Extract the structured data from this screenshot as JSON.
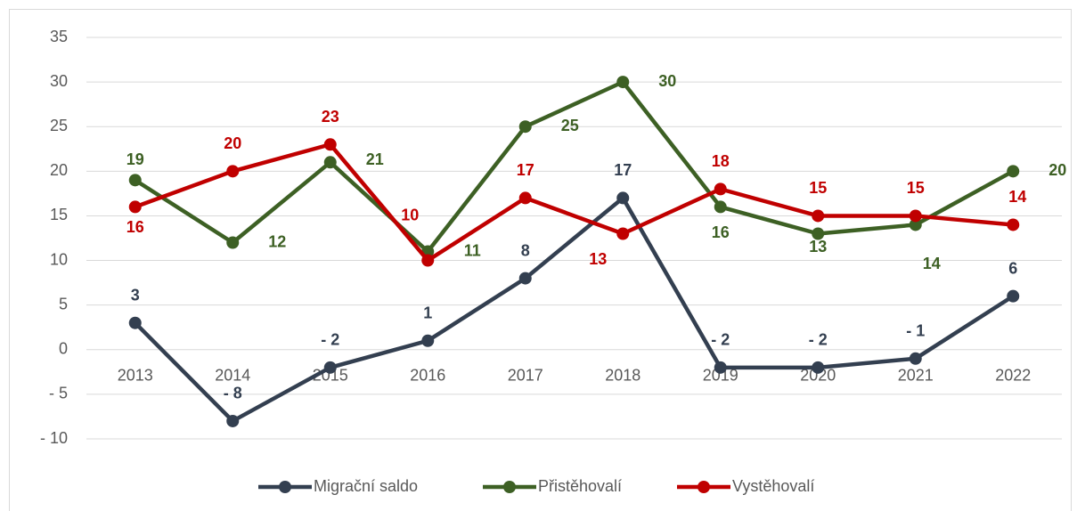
{
  "chart_data": {
    "type": "line",
    "categories": [
      "2013",
      "2014",
      "2015",
      "2016",
      "2017",
      "2018",
      "2019",
      "2020",
      "2021",
      "2022"
    ],
    "series": [
      {
        "name": "Migrační saldo",
        "color": "#333f50",
        "values": [
          3,
          -8,
          -2,
          1,
          8,
          17,
          -2,
          -2,
          -1,
          6
        ],
        "value_labels": [
          "3",
          "- 8",
          "- 2",
          "1",
          "8",
          "17",
          "- 2",
          "- 2",
          "- 1",
          "6"
        ]
      },
      {
        "name": "Přistěhovalí",
        "color": "#3d6024",
        "values": [
          19,
          12,
          21,
          11,
          25,
          30,
          16,
          13,
          14,
          20
        ]
      },
      {
        "name": "Vystěhovalí",
        "color": "#c00000",
        "values": [
          16,
          20,
          23,
          10,
          17,
          13,
          18,
          15,
          15,
          14
        ]
      }
    ],
    "ylim": [
      -10,
      35
    ],
    "yticks": [
      {
        "value": -10,
        "label": "- 10"
      },
      {
        "value": -5,
        "label": "- 5"
      },
      0,
      5,
      10,
      15,
      20,
      25,
      30,
      35
    ],
    "grid": true,
    "legend": "bottom"
  }
}
